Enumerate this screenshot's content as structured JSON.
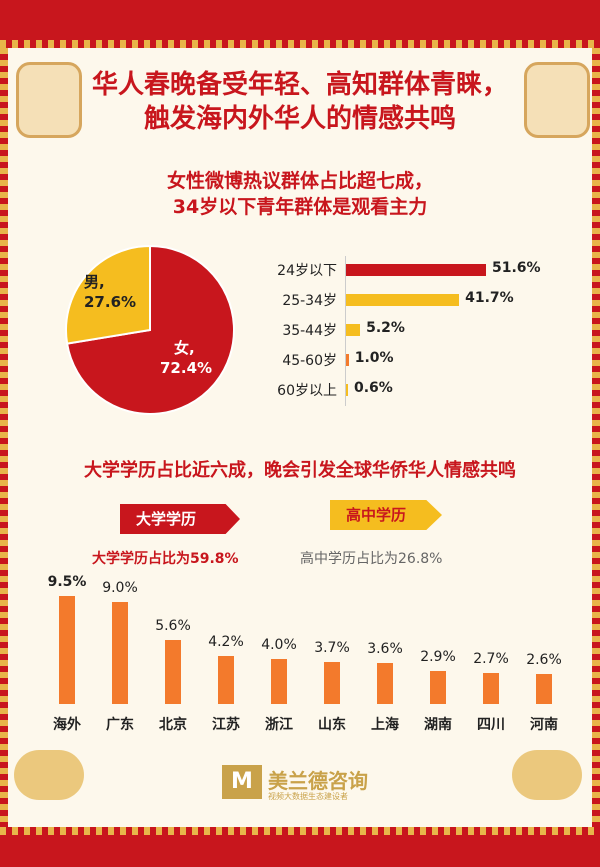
{
  "title_line1": "华人春晚备受年轻、高知群体青睐，",
  "title_line2": "触发海内外华人的情感共鸣",
  "subtitle_line1": "女性微博热议群体占比超七成，",
  "subtitle_line2": "34岁以下青年群体是观看主力",
  "section2_title": "大学学历占比近六成，晚会引发全球华侨华人情感共鸣",
  "tag_university": "大学学历",
  "tag_highschool": "高中学历",
  "note_university": "大学学历占比为59.8%",
  "note_highschool": "高中学历占比为26.8%",
  "logo": {
    "mark": "M",
    "name": "美兰德咨询",
    "sub": "视频大数据生态建设者"
  },
  "colors": {
    "red": "#c8161d",
    "gold": "#f5bd1f",
    "orange": "#f37a2c",
    "bg": "#fdf8ec"
  },
  "chart_data": [
    {
      "type": "pie",
      "slices": [
        {
          "name": "女",
          "value": 72.4,
          "label": "女,",
          "value_label": "72.4%",
          "color": "#c8161d"
        },
        {
          "name": "男",
          "value": 27.6,
          "label": "男,",
          "value_label": "27.6%",
          "color": "#f5bd1f"
        }
      ]
    },
    {
      "type": "bar",
      "orientation": "horizontal",
      "categories": [
        "24岁以下",
        "25-34岁",
        "35-44岁",
        "45-60岁",
        "60岁以上"
      ],
      "values": [
        51.6,
        41.7,
        5.2,
        1.0,
        0.6
      ],
      "value_labels": [
        "51.6%",
        "41.7%",
        "5.2%",
        "1.0%",
        "0.6%"
      ],
      "colors": [
        "#c8161d",
        "#f5bd1f",
        "#f5bd1f",
        "#f37a2c",
        "#f5bd1f"
      ]
    },
    {
      "type": "bar",
      "categories": [
        "海外",
        "广东",
        "北京",
        "江苏",
        "浙江",
        "山东",
        "上海",
        "湖南",
        "四川",
        "河南"
      ],
      "values": [
        9.5,
        9.0,
        5.6,
        4.2,
        4.0,
        3.7,
        3.6,
        2.9,
        2.7,
        2.6
      ],
      "value_labels": [
        "9.5%",
        "9.0%",
        "5.6%",
        "4.2%",
        "4.0%",
        "3.7%",
        "3.6%",
        "2.9%",
        "2.7%",
        "2.6%"
      ],
      "color": "#f37a2c"
    }
  ]
}
